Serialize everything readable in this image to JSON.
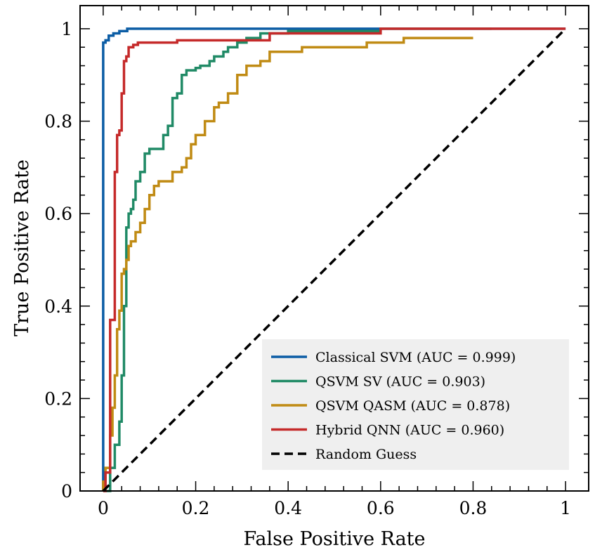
{
  "chart_data": {
    "type": "line",
    "xlabel": "False Positive Rate",
    "ylabel": "True Positive Rate",
    "xlim": [
      -0.05,
      1.05
    ],
    "ylim": [
      0,
      1.05
    ],
    "xticks": [
      0,
      0.2,
      0.4,
      0.6,
      0.8,
      1
    ],
    "xtick_labels": [
      "0",
      "0.2",
      "0.4",
      "0.6",
      "0.8",
      "1"
    ],
    "yticks": [
      0,
      0.2,
      0.4,
      0.6,
      0.8,
      1
    ],
    "ytick_labels": [
      "0",
      "0.2",
      "0.4",
      "0.6",
      "0.8",
      "1"
    ],
    "legend_position": "bottom-right",
    "series": [
      {
        "name": "Classical SVM (AUC = 0.999)",
        "color": "#0c5da5",
        "style": "solid",
        "x": [
          0,
          0,
          0.005,
          0.005,
          0.012,
          0.012,
          0.022,
          0.022,
          0.035,
          0.035,
          0.052,
          0.052,
          1
        ],
        "y": [
          0,
          0.97,
          0.97,
          0.975,
          0.975,
          0.985,
          0.985,
          0.99,
          0.99,
          0.995,
          0.995,
          1,
          1
        ]
      },
      {
        "name": "QSVM SV (AUC = 0.903)",
        "color": "#208a66",
        "style": "solid",
        "x": [
          0,
          0.015,
          0.015,
          0.025,
          0.025,
          0.035,
          0.035,
          0.04,
          0.04,
          0.045,
          0.045,
          0.05,
          0.05,
          0.055,
          0.055,
          0.06,
          0.06,
          0.065,
          0.065,
          0.07,
          0.07,
          0.08,
          0.08,
          0.09,
          0.09,
          0.1,
          0.1,
          0.13,
          0.13,
          0.14,
          0.14,
          0.15,
          0.15,
          0.16,
          0.16,
          0.17,
          0.17,
          0.18,
          0.18,
          0.2,
          0.2,
          0.21,
          0.21,
          0.23,
          0.23,
          0.24,
          0.24,
          0.26,
          0.26,
          0.27,
          0.27,
          0.29,
          0.29,
          0.31,
          0.31,
          0.34,
          0.34,
          0.4,
          0.4,
          0.6,
          0.6,
          0.84
        ],
        "y": [
          0,
          0,
          0.05,
          0.05,
          0.1,
          0.1,
          0.15,
          0.15,
          0.25,
          0.25,
          0.4,
          0.4,
          0.57,
          0.57,
          0.6,
          0.6,
          0.61,
          0.61,
          0.63,
          0.63,
          0.67,
          0.67,
          0.69,
          0.69,
          0.73,
          0.73,
          0.74,
          0.74,
          0.77,
          0.77,
          0.79,
          0.79,
          0.85,
          0.85,
          0.86,
          0.86,
          0.9,
          0.9,
          0.91,
          0.91,
          0.915,
          0.915,
          0.92,
          0.92,
          0.93,
          0.93,
          0.94,
          0.94,
          0.95,
          0.95,
          0.96,
          0.96,
          0.97,
          0.97,
          0.98,
          0.98,
          0.99,
          0.99,
          0.995,
          0.995,
          1,
          1
        ]
      },
      {
        "name": "QSVM QASM (AUC = 0.878)",
        "color": "#c08b14",
        "style": "solid",
        "x": [
          0,
          0,
          0.005,
          0.005,
          0.015,
          0.015,
          0.02,
          0.02,
          0.025,
          0.025,
          0.03,
          0.03,
          0.035,
          0.035,
          0.04,
          0.04,
          0.045,
          0.045,
          0.05,
          0.05,
          0.055,
          0.055,
          0.06,
          0.06,
          0.07,
          0.07,
          0.08,
          0.08,
          0.09,
          0.09,
          0.1,
          0.1,
          0.11,
          0.11,
          0.12,
          0.12,
          0.15,
          0.15,
          0.17,
          0.17,
          0.18,
          0.18,
          0.19,
          0.19,
          0.2,
          0.2,
          0.22,
          0.22,
          0.24,
          0.24,
          0.25,
          0.25,
          0.27,
          0.27,
          0.29,
          0.29,
          0.31,
          0.31,
          0.34,
          0.34,
          0.36,
          0.36,
          0.43,
          0.43,
          0.57,
          0.57,
          0.65,
          0.65,
          0.8
        ],
        "y": [
          0,
          0.02,
          0.02,
          0.05,
          0.05,
          0.12,
          0.12,
          0.18,
          0.18,
          0.25,
          0.25,
          0.35,
          0.35,
          0.39,
          0.39,
          0.47,
          0.47,
          0.48,
          0.48,
          0.5,
          0.5,
          0.53,
          0.53,
          0.54,
          0.54,
          0.56,
          0.56,
          0.58,
          0.58,
          0.61,
          0.61,
          0.64,
          0.64,
          0.66,
          0.66,
          0.67,
          0.67,
          0.69,
          0.69,
          0.7,
          0.7,
          0.72,
          0.72,
          0.75,
          0.75,
          0.77,
          0.77,
          0.8,
          0.8,
          0.83,
          0.83,
          0.84,
          0.84,
          0.86,
          0.86,
          0.9,
          0.9,
          0.92,
          0.92,
          0.93,
          0.93,
          0.95,
          0.95,
          0.96,
          0.96,
          0.97,
          0.97,
          0.98,
          0.98
        ]
      },
      {
        "name": "Hybrid QNN (AUC = 0.960)",
        "color": "#c52a2a",
        "style": "solid",
        "x": [
          0,
          0.005,
          0.005,
          0.015,
          0.015,
          0.025,
          0.025,
          0.03,
          0.03,
          0.035,
          0.035,
          0.04,
          0.04,
          0.045,
          0.045,
          0.05,
          0.05,
          0.055,
          0.055,
          0.065,
          0.065,
          0.075,
          0.075,
          0.16,
          0.16,
          0.36,
          0.36,
          0.6,
          0.6,
          1
        ],
        "y": [
          0,
          0,
          0.04,
          0.04,
          0.37,
          0.37,
          0.69,
          0.69,
          0.77,
          0.77,
          0.78,
          0.78,
          0.86,
          0.86,
          0.93,
          0.93,
          0.94,
          0.94,
          0.96,
          0.96,
          0.965,
          0.965,
          0.97,
          0.97,
          0.975,
          0.975,
          0.99,
          0.99,
          1,
          1
        ]
      },
      {
        "name": "Random Guess",
        "color": "#000000",
        "style": "dashed",
        "x": [
          0,
          1
        ],
        "y": [
          0,
          1
        ]
      }
    ]
  }
}
